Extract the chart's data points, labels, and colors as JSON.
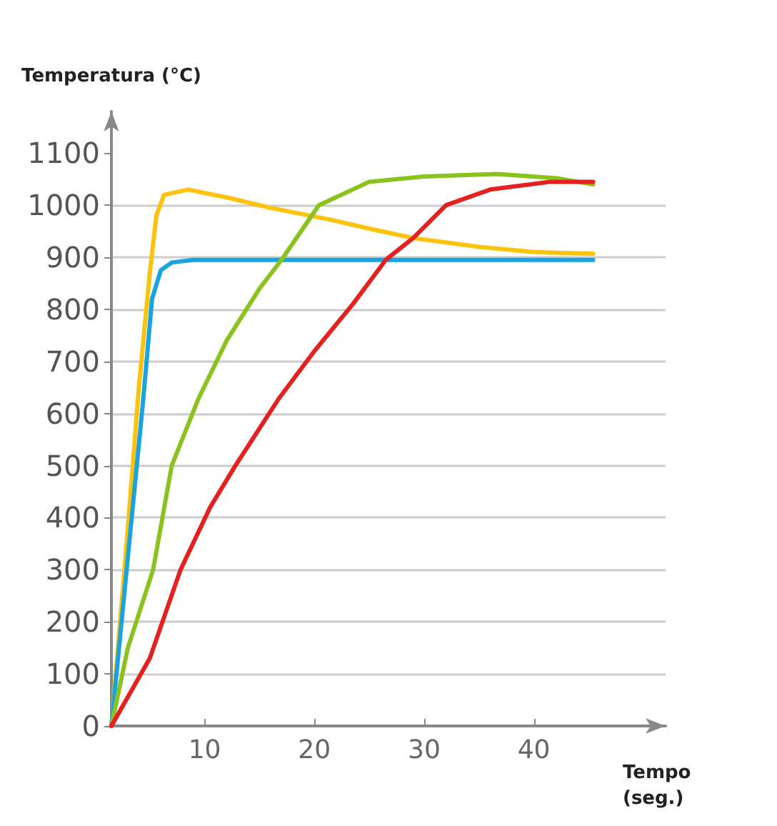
{
  "chart_data": {
    "type": "line",
    "xlabel": "Tempo\n(seg.)",
    "ylabel": "Temperatura (°C)",
    "xlim": [
      1.5,
      52
    ],
    "xticks": [
      10,
      20,
      30,
      40
    ],
    "ylim": [
      0,
      1180
    ],
    "yticks": [
      0,
      100,
      200,
      300,
      400,
      500,
      600,
      700,
      800,
      900,
      1000,
      1100
    ],
    "grid": "y",
    "marker": "none",
    "line_style": "solid",
    "series": [
      {
        "color": "#fdc20b",
        "x": [
          1.5,
          3,
          4,
          5,
          5.6,
          6.3,
          8.5,
          12,
          16,
          21.5,
          25,
          29,
          35,
          40,
          45.4
        ],
        "values": [
          0,
          380,
          650,
          870,
          980,
          1020,
          1030,
          1015,
          995,
          972,
          955,
          937,
          920,
          910,
          907
        ]
      },
      {
        "color": "#19a3e0",
        "x": [
          1.5,
          4.4,
          5.2,
          6,
          7,
          9,
          20,
          30,
          45.4
        ],
        "values": [
          0,
          627,
          820,
          875,
          890,
          895,
          895,
          895,
          895
        ]
      },
      {
        "color": "#8cc21e",
        "x": [
          1.5,
          3,
          5.3,
          7,
          9.4,
          12,
          15,
          17,
          20.4,
          25,
          30,
          36.6,
          42,
          45.4
        ],
        "values": [
          0,
          150,
          300,
          500,
          627,
          740,
          840,
          895,
          1000,
          1045,
          1055,
          1060,
          1052,
          1040
        ]
      },
      {
        "color": "#e5211f",
        "x": [
          1.5,
          5,
          7.8,
          10.5,
          12.8,
          16.7,
          20,
          23.5,
          26.5,
          29,
          32,
          36,
          41.5,
          45.4
        ],
        "values": [
          0,
          130,
          300,
          420,
          500,
          627,
          720,
          810,
          895,
          937,
          1000,
          1030,
          1045,
          1045
        ]
      }
    ]
  }
}
